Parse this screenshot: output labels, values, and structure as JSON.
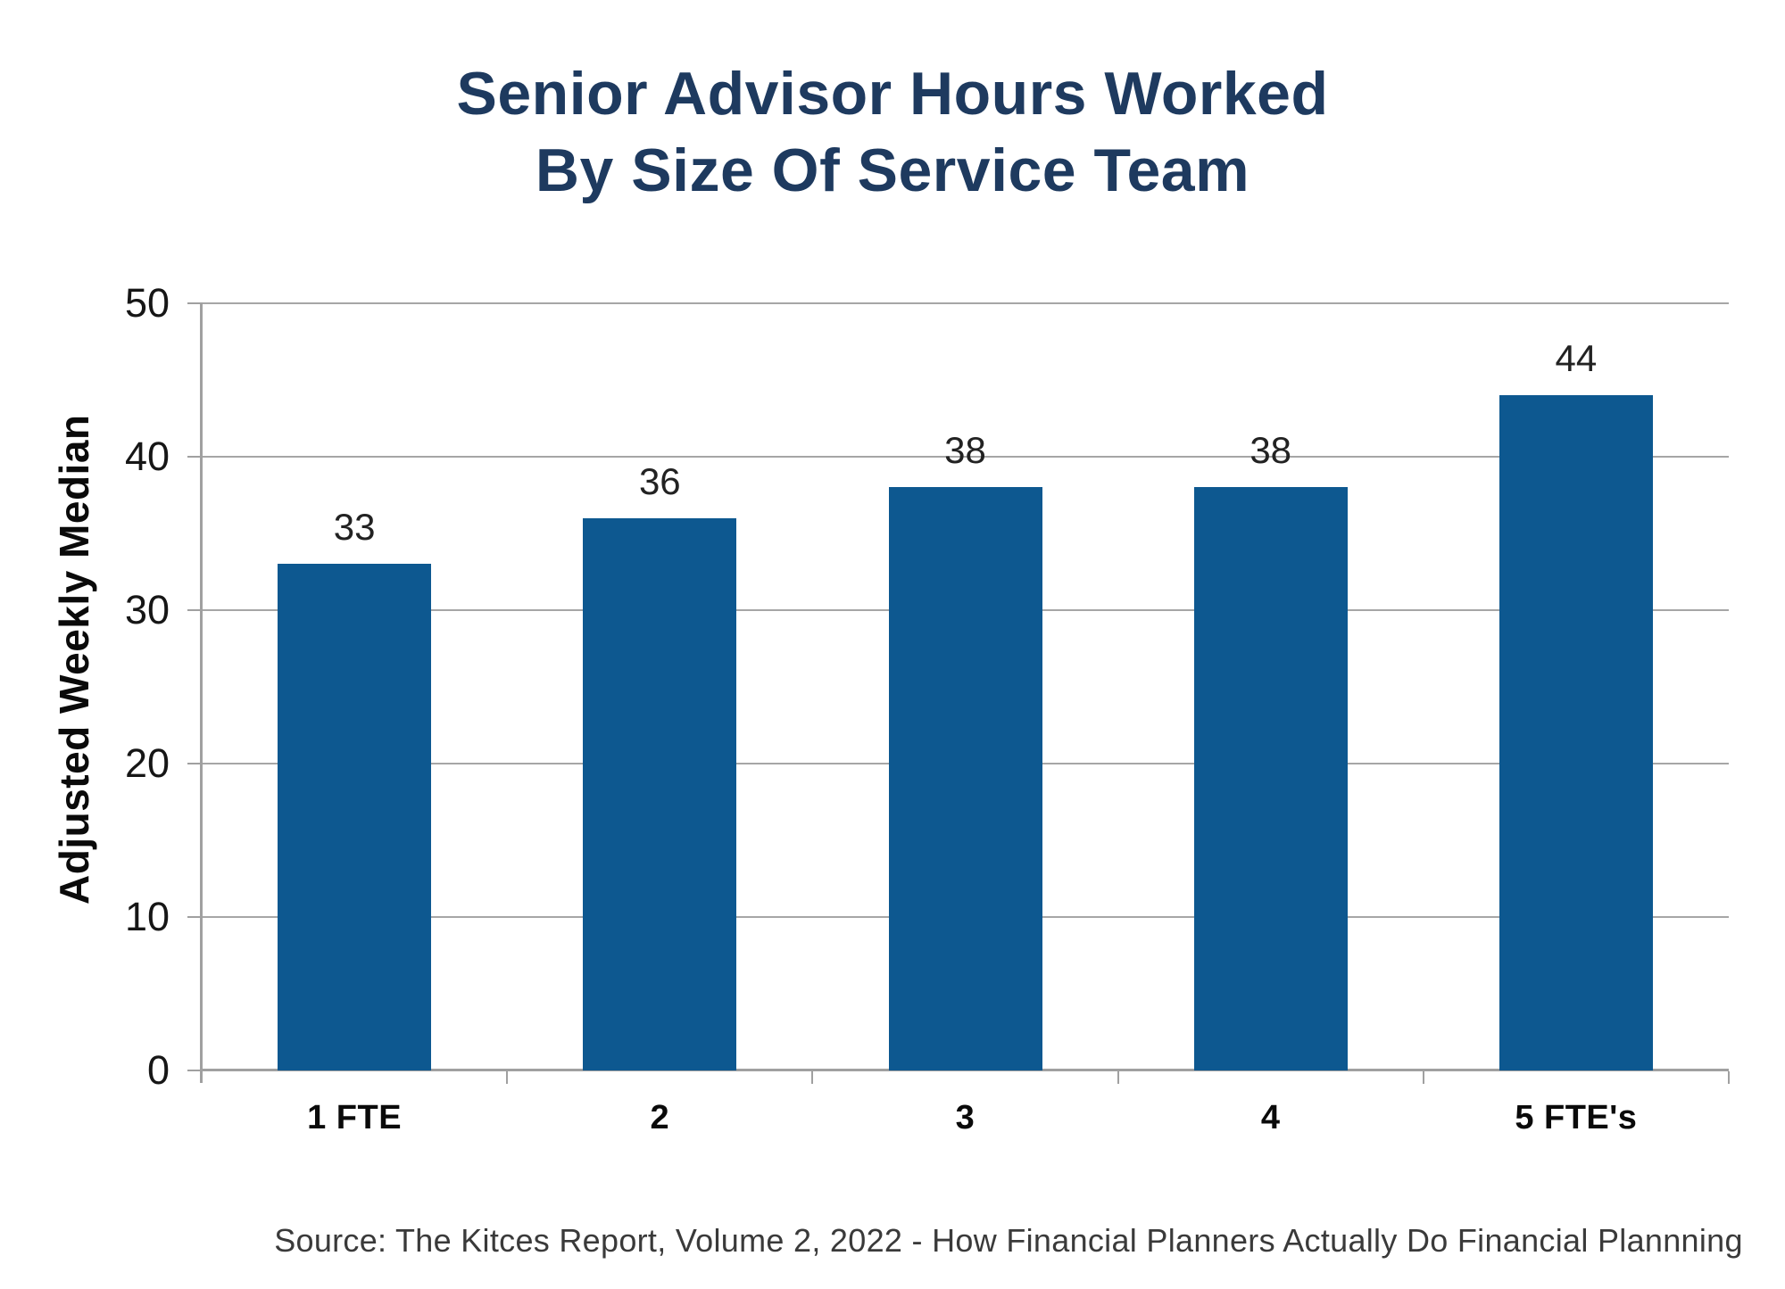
{
  "header": {
    "title_lines": [
      "Senior Advisor Hours Worked",
      "By Size Of Service Team"
    ]
  },
  "chart_data": {
    "type": "bar",
    "title": "Senior Advisor Hours Worked By Size Of Service Team",
    "categories": [
      "1 FTE",
      "2",
      "3",
      "4",
      "5 FTE's"
    ],
    "values": [
      33,
      36,
      38,
      38,
      44
    ],
    "xlabel": "",
    "ylabel": "Adjusted Weekly Median",
    "ylim": [
      0,
      50
    ],
    "yticks": [
      0,
      10,
      20,
      30,
      40,
      50
    ],
    "grid": "horizontal",
    "legend": false,
    "data_labels": true,
    "bar_color": "#0d5890"
  },
  "footer": {
    "source": "Source: The Kitces Report, Volume 2, 2022 - How Financial Planners Actually Do Financial Plannning"
  },
  "colors": {
    "title_navy": "#1e3a5f",
    "bar_blue": "#0d5890",
    "gridline_gray": "#a6a6a6",
    "axis_gray": "#a0a0a0",
    "label_black": "#161616",
    "source_gray": "#3a3a3a"
  }
}
